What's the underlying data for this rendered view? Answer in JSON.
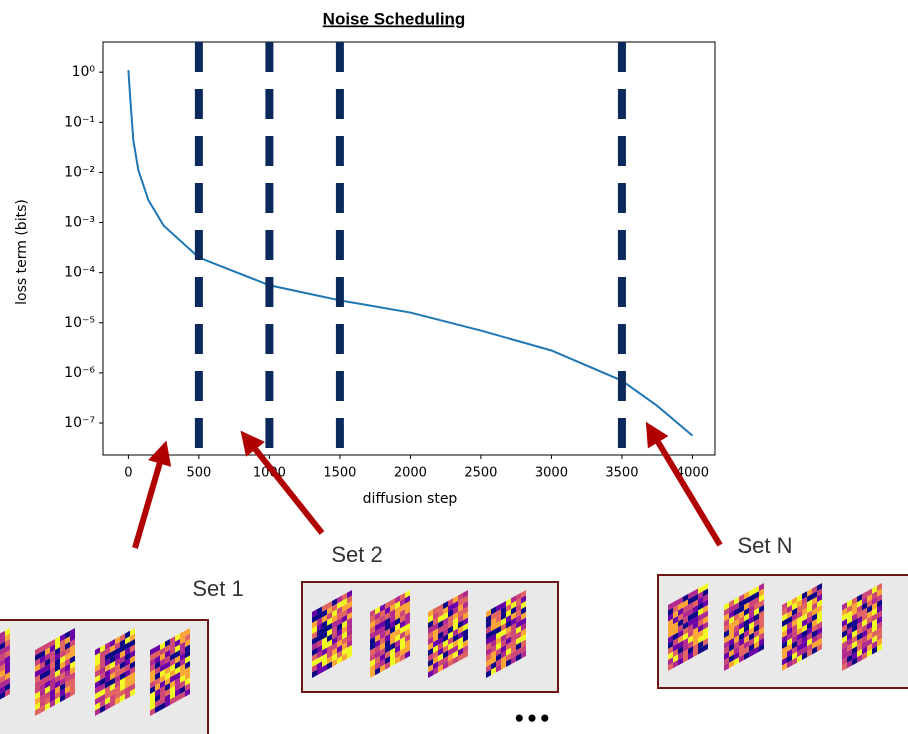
{
  "chart_data": {
    "type": "line",
    "title": "Noise Scheduling",
    "x_label": "diffusion step",
    "y_label": "loss term (bits)",
    "x": [
      0,
      14,
      35,
      71,
      142,
      250,
      500,
      1000,
      1500,
      2000,
      2500,
      3000,
      3500,
      3750,
      4000
    ],
    "series": [
      {
        "name": "loss term",
        "color": "#1f77b4",
        "values": [
          1.1,
          0.28,
          0.044,
          0.011,
          0.0028,
          0.00087,
          0.0002,
          5.6e-05,
          2.8e-05,
          1.6e-05,
          7e-06,
          2.8e-06,
          7e-07,
          2.2e-07,
          5.6e-08
        ]
      }
    ],
    "xlim": [
      -180,
      4160
    ],
    "xticks": [
      0,
      500,
      1000,
      1500,
      2000,
      2500,
      3000,
      3500,
      4000
    ],
    "ylim": [
      2.3e-08,
      4
    ],
    "log_y": true,
    "yticks": [
      {
        "value": 1,
        "label": "10⁰"
      },
      {
        "value": 0.1,
        "label": "10⁻¹"
      },
      {
        "value": 0.01,
        "label": "10⁻²"
      },
      {
        "value": 0.001,
        "label": "10⁻³"
      },
      {
        "value": 0.0001,
        "label": "10⁻⁴"
      },
      {
        "value": 1e-05,
        "label": "10⁻⁵"
      },
      {
        "value": 1e-06,
        "label": "10⁻⁶"
      },
      {
        "value": 1e-07,
        "label": "10⁻⁷"
      }
    ],
    "vlines": [
      500,
      1000,
      1500,
      3500
    ],
    "vline_color": "#0b2a5b",
    "annotations": [
      "Set 1",
      "Set 2",
      "Set N",
      "•••"
    ]
  }
}
